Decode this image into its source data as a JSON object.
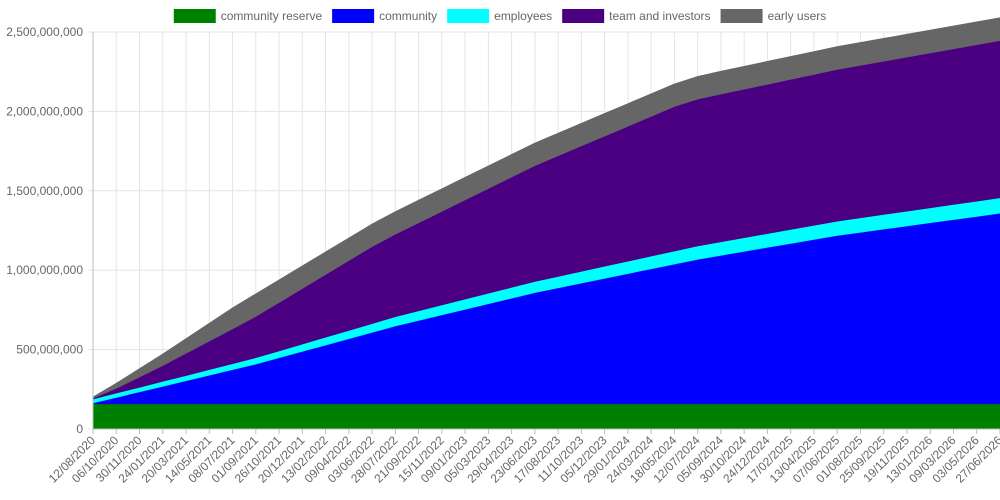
{
  "chart_data": {
    "type": "area",
    "stacked": true,
    "legend_position": "top",
    "grid": true,
    "ylim": [
      0,
      2500000000
    ],
    "y_ticks": [
      0,
      500000000,
      1000000000,
      1500000000,
      2000000000,
      2500000000
    ],
    "y_tick_labels": [
      "0",
      "500,000,000",
      "1,000,000,000",
      "1,500,000,000",
      "2,000,000,000",
      "2,500,000,000"
    ],
    "x": [
      "12/08/2020",
      "06/10/2020",
      "30/11/2020",
      "24/01/2021",
      "20/03/2021",
      "14/05/2021",
      "08/07/2021",
      "01/09/2021",
      "26/10/2021",
      "20/12/2021",
      "13/02/2022",
      "09/04/2022",
      "03/06/2022",
      "28/07/2022",
      "21/09/2022",
      "15/11/2022",
      "09/01/2023",
      "05/03/2023",
      "29/04/2023",
      "23/06/2023",
      "17/08/2023",
      "11/10/2023",
      "05/12/2023",
      "29/01/2024",
      "24/03/2024",
      "18/05/2024",
      "12/07/2024",
      "05/09/2024",
      "30/10/2024",
      "24/12/2024",
      "17/02/2025",
      "13/04/2025",
      "07/06/2025",
      "01/08/2025",
      "25/09/2025",
      "19/11/2025",
      "13/01/2026",
      "09/03/2026",
      "03/05/2026",
      "27/06/2026"
    ],
    "series": [
      {
        "name": "community reserve",
        "color": "#008000",
        "values": [
          160000000,
          160000000,
          160000000,
          160000000,
          160000000,
          160000000,
          160000000,
          160000000,
          160000000,
          160000000,
          160000000,
          160000000,
          160000000,
          160000000,
          160000000,
          160000000,
          160000000,
          160000000,
          160000000,
          160000000,
          160000000,
          160000000,
          160000000,
          160000000,
          160000000,
          160000000,
          160000000,
          160000000,
          160000000,
          160000000,
          160000000,
          160000000,
          160000000,
          160000000,
          160000000,
          160000000,
          160000000,
          160000000,
          160000000,
          160000000
        ]
      },
      {
        "name": "community",
        "color": "#0000ff",
        "values": [
          5000000,
          40000000,
          75000000,
          110000000,
          145000000,
          180000000,
          215000000,
          250000000,
          290000000,
          330000000,
          370000000,
          410000000,
          450000000,
          490000000,
          525000000,
          560000000,
          595000000,
          630000000,
          665000000,
          700000000,
          730000000,
          760000000,
          790000000,
          820000000,
          850000000,
          880000000,
          910000000,
          935000000,
          960000000,
          985000000,
          1010000000,
          1035000000,
          1060000000,
          1080000000,
          1100000000,
          1120000000,
          1140000000,
          1160000000,
          1180000000,
          1200000000
        ]
      },
      {
        "name": "employees",
        "color": "#00ffff",
        "values": [
          25000000,
          27000000,
          29000000,
          31000000,
          33000000,
          35000000,
          37000000,
          40000000,
          43000000,
          46000000,
          49000000,
          52000000,
          55000000,
          58000000,
          60000000,
          62000000,
          64000000,
          66000000,
          68000000,
          70000000,
          72000000,
          74000000,
          76000000,
          78000000,
          80000000,
          82000000,
          84000000,
          85000000,
          86000000,
          87000000,
          88000000,
          89000000,
          90000000,
          91000000,
          92000000,
          93000000,
          94000000,
          95000000,
          96000000,
          97000000
        ]
      },
      {
        "name": "team and investors",
        "color": "#4b0082",
        "values": [
          5000000,
          30000000,
          65000000,
          100000000,
          140000000,
          180000000,
          220000000,
          260000000,
          305000000,
          350000000,
          395000000,
          440000000,
          485000000,
          520000000,
          555000000,
          590000000,
          625000000,
          660000000,
          695000000,
          730000000,
          760000000,
          790000000,
          820000000,
          850000000,
          880000000,
          910000000,
          925000000,
          930000000,
          935000000,
          940000000,
          945000000,
          950000000,
          955000000,
          960000000,
          965000000,
          970000000,
          975000000,
          980000000,
          985000000,
          990000000
        ]
      },
      {
        "name": "early users",
        "color": "#666666",
        "values": [
          5000000,
          30000000,
          50000000,
          70000000,
          90000000,
          110000000,
          130000000,
          140000000,
          140000000,
          140000000,
          140000000,
          140000000,
          140000000,
          140000000,
          140000000,
          140000000,
          140000000,
          140000000,
          140000000,
          140000000,
          140000000,
          140000000,
          140000000,
          140000000,
          140000000,
          140000000,
          140000000,
          142000000,
          142000000,
          142000000,
          142000000,
          142000000,
          142000000,
          142000000,
          142000000,
          142000000,
          142000000,
          142000000,
          142000000,
          142000000
        ]
      }
    ]
  }
}
